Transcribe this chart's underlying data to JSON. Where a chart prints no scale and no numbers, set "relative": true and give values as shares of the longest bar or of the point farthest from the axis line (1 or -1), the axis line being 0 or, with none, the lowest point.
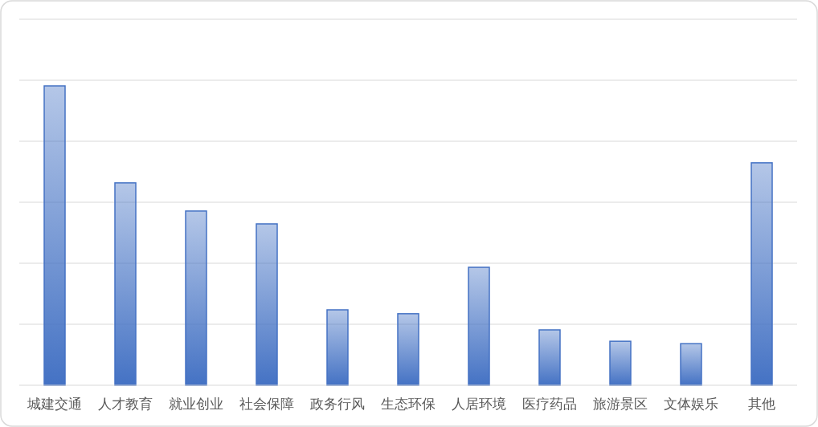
{
  "chart_data": {
    "type": "bar",
    "relative": true,
    "grid": "y",
    "color": "#4472c4",
    "categories": [
      "城建交通",
      "人才教育",
      "就业创业",
      "社会保障",
      "政务行风",
      "生态环保",
      "人居环境",
      "医疗药品",
      "旅游景区",
      "文体娱乐",
      "其他"
    ],
    "values": [
      1,
      0.676,
      0.582,
      0.539,
      0.252,
      0.239,
      0.394,
      0.185,
      0.147,
      0.139,
      0.743
    ]
  }
}
